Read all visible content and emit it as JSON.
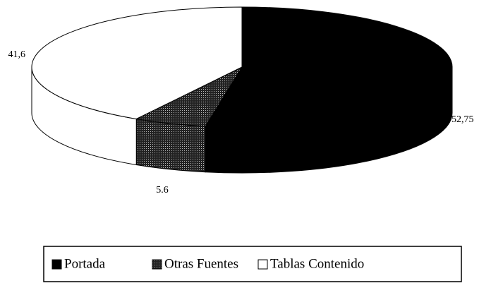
{
  "chart_data": {
    "type": "pie3d",
    "categories": [
      "Portada",
      "Otras Fuentes",
      "Tablas Contenido"
    ],
    "values": [
      52.75,
      5.6,
      41.6
    ],
    "value_labels": [
      "52,75",
      "5.6",
      "41,6"
    ],
    "colors": [
      "#000000",
      "#4a4a4a",
      "#ffffff"
    ]
  }
}
